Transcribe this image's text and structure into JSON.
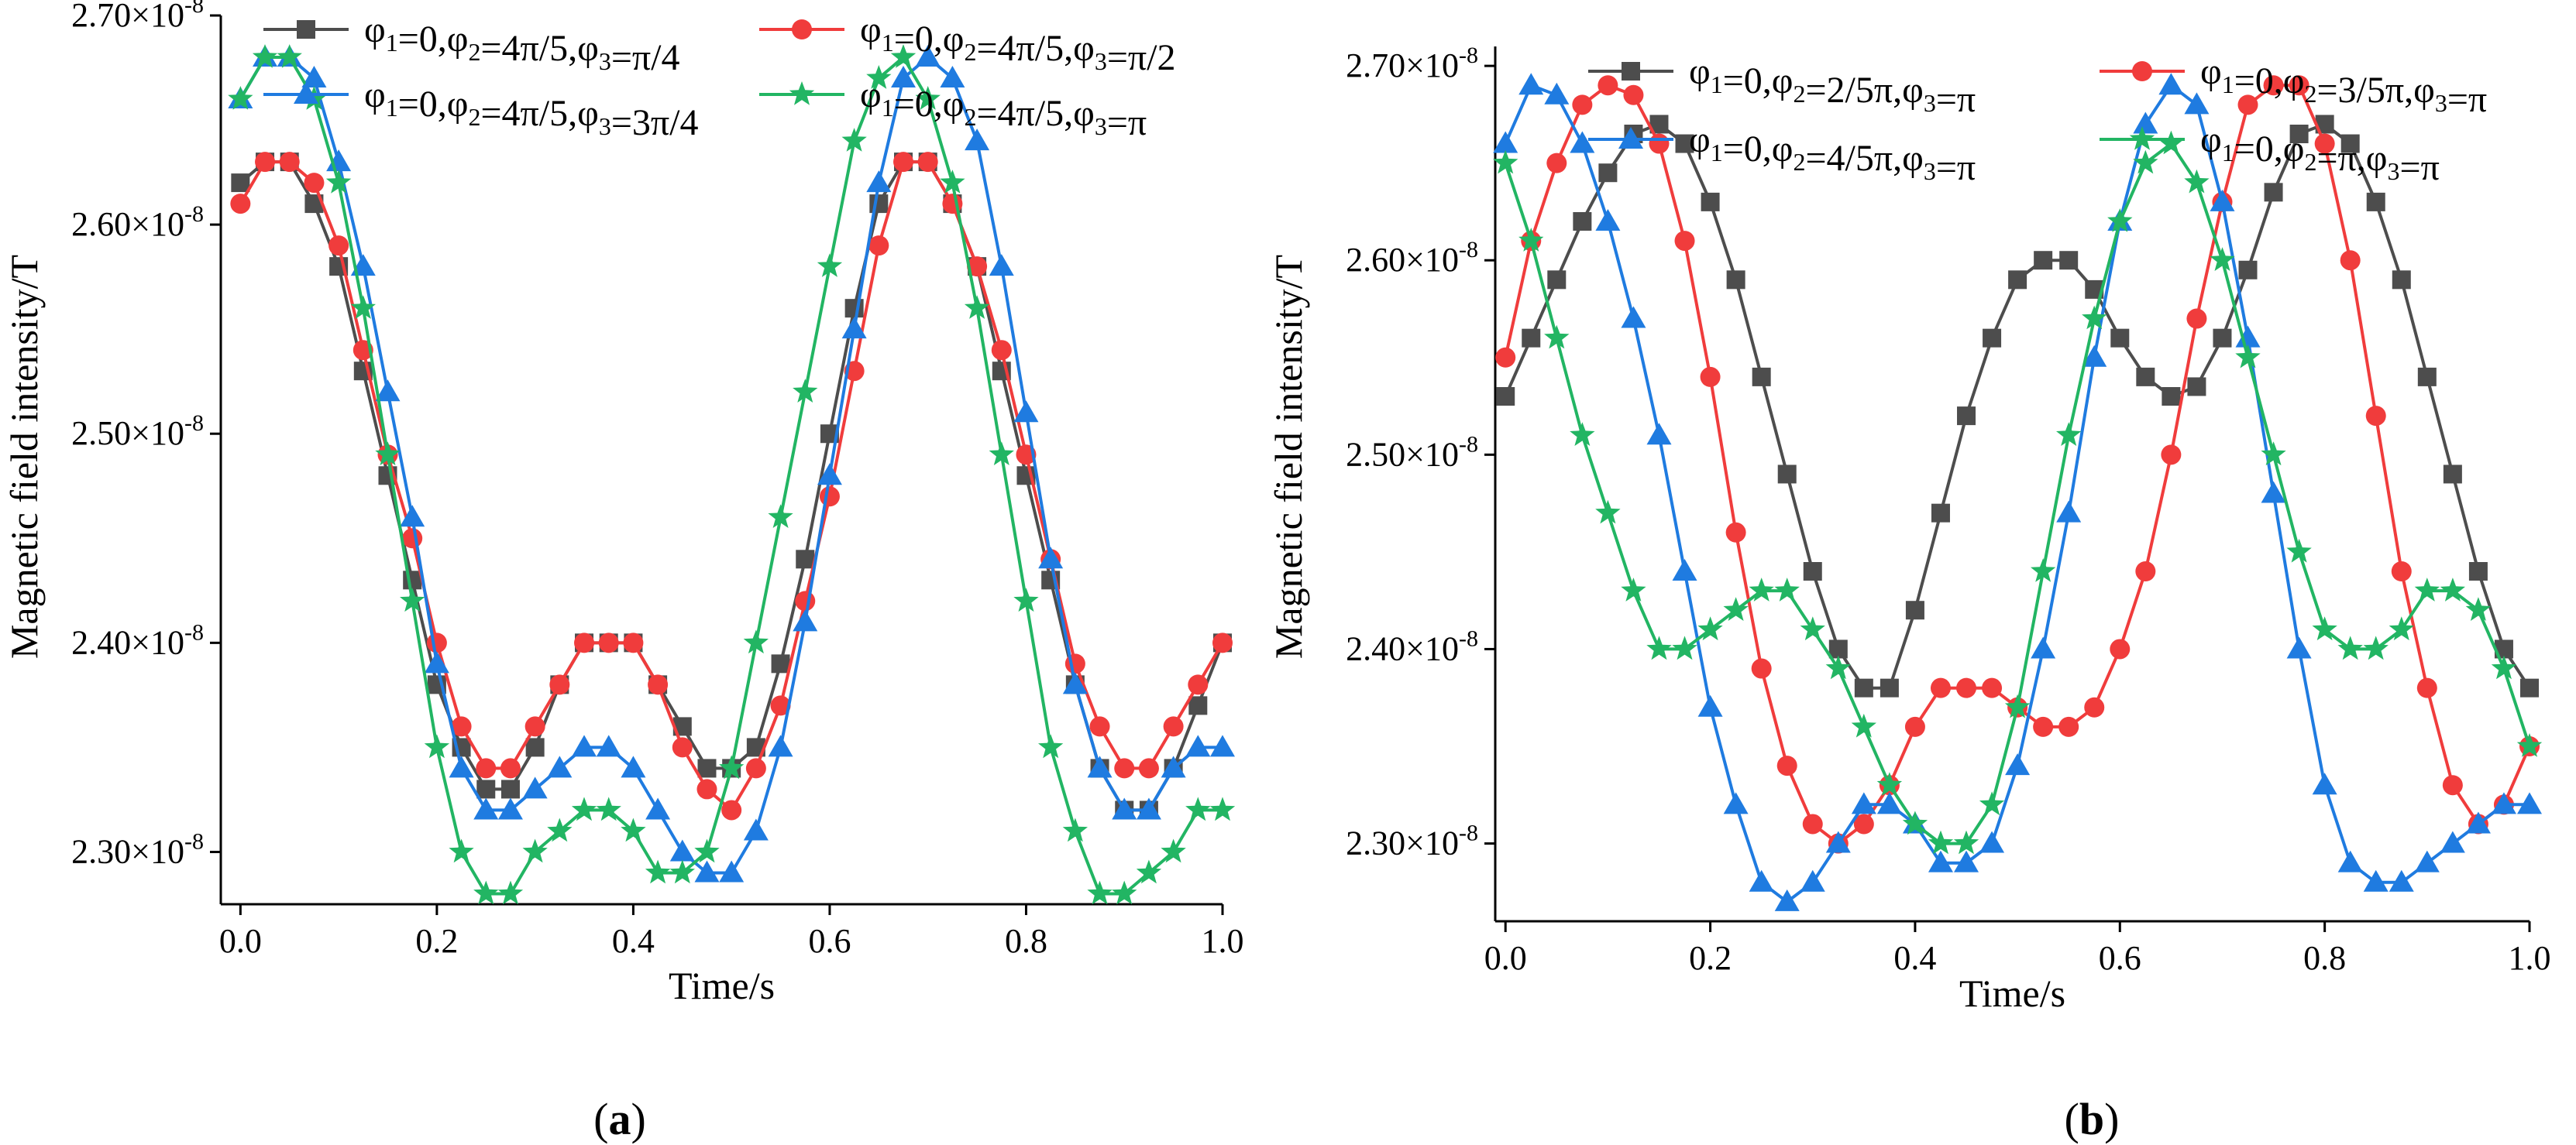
{
  "colors": {
    "axis": "#000000",
    "series": [
      "#4d4d4d",
      "#f03c3c",
      "#1f7be0",
      "#22b563"
    ]
  },
  "chart_data": [
    {
      "type": "line",
      "panel_label": "(a)",
      "xlabel": "Time/s",
      "ylabel": "Magnetic field intensity/T",
      "xlim": [
        -0.02,
        1.0
      ],
      "ylim": [
        2.275e-08,
        2.7e-08
      ],
      "x_ticks": [
        "0.0",
        "0.2",
        "0.4",
        "0.6",
        "0.8",
        "1.0"
      ],
      "y_ticks": [
        {
          "mantissa": "2.30×10",
          "exp": "-8"
        },
        {
          "mantissa": "2.40×10",
          "exp": "-8"
        },
        {
          "mantissa": "2.50×10",
          "exp": "-8"
        },
        {
          "mantissa": "2.60×10",
          "exp": "-8"
        },
        {
          "mantissa": "2.70×10",
          "exp": "-8"
        }
      ],
      "legend_position": "top",
      "series": [
        {
          "name": "φ1=0,φ2=4π/5,φ3=π/4",
          "marker": "square",
          "x": [
            0.0,
            0.025,
            0.05,
            0.075,
            0.1,
            0.125,
            0.15,
            0.175,
            0.2,
            0.225,
            0.25,
            0.275,
            0.3,
            0.325,
            0.35,
            0.375,
            0.4,
            0.425,
            0.45,
            0.475,
            0.5,
            0.525,
            0.55,
            0.575,
            0.6,
            0.625,
            0.65,
            0.675,
            0.7,
            0.725,
            0.75,
            0.775,
            0.8,
            0.825,
            0.85,
            0.875,
            0.9,
            0.925,
            0.95,
            0.975,
            1.0
          ],
          "y": [
            2.62,
            2.63,
            2.63,
            2.61,
            2.58,
            2.53,
            2.48,
            2.43,
            2.38,
            2.35,
            2.33,
            2.33,
            2.35,
            2.38,
            2.4,
            2.4,
            2.4,
            2.38,
            2.36,
            2.34,
            2.34,
            2.35,
            2.39,
            2.44,
            2.5,
            2.56,
            2.61,
            2.63,
            2.63,
            2.61,
            2.58,
            2.53,
            2.48,
            2.43,
            2.38,
            2.34,
            2.32,
            2.32,
            2.34,
            2.37,
            2.4
          ]
        },
        {
          "name": "φ1=0,φ2=4π/5,φ3=π/2",
          "marker": "circle",
          "x": [
            0.0,
            0.025,
            0.05,
            0.075,
            0.1,
            0.125,
            0.15,
            0.175,
            0.2,
            0.225,
            0.25,
            0.275,
            0.3,
            0.325,
            0.35,
            0.375,
            0.4,
            0.425,
            0.45,
            0.475,
            0.5,
            0.525,
            0.55,
            0.575,
            0.6,
            0.625,
            0.65,
            0.675,
            0.7,
            0.725,
            0.75,
            0.775,
            0.8,
            0.825,
            0.85,
            0.875,
            0.9,
            0.925,
            0.95,
            0.975,
            1.0
          ],
          "y": [
            2.61,
            2.63,
            2.63,
            2.62,
            2.59,
            2.54,
            2.49,
            2.45,
            2.4,
            2.36,
            2.34,
            2.34,
            2.36,
            2.38,
            2.4,
            2.4,
            2.4,
            2.38,
            2.35,
            2.33,
            2.32,
            2.34,
            2.37,
            2.42,
            2.47,
            2.53,
            2.59,
            2.63,
            2.63,
            2.61,
            2.58,
            2.54,
            2.49,
            2.44,
            2.39,
            2.36,
            2.34,
            2.34,
            2.36,
            2.38,
            2.4
          ]
        },
        {
          "name": "φ1=0,φ2=4π/5,φ3=3π/4",
          "marker": "triangle",
          "x": [
            0.0,
            0.025,
            0.05,
            0.075,
            0.1,
            0.125,
            0.15,
            0.175,
            0.2,
            0.225,
            0.25,
            0.275,
            0.3,
            0.325,
            0.35,
            0.375,
            0.4,
            0.425,
            0.45,
            0.475,
            0.5,
            0.525,
            0.55,
            0.575,
            0.6,
            0.625,
            0.65,
            0.675,
            0.7,
            0.725,
            0.75,
            0.775,
            0.8,
            0.825,
            0.85,
            0.875,
            0.9,
            0.925,
            0.95,
            0.975,
            1.0
          ],
          "y": [
            2.66,
            2.68,
            2.68,
            2.67,
            2.63,
            2.58,
            2.52,
            2.46,
            2.39,
            2.34,
            2.32,
            2.32,
            2.33,
            2.34,
            2.35,
            2.35,
            2.34,
            2.32,
            2.3,
            2.29,
            2.29,
            2.31,
            2.35,
            2.41,
            2.48,
            2.55,
            2.62,
            2.67,
            2.68,
            2.67,
            2.64,
            2.58,
            2.51,
            2.44,
            2.38,
            2.34,
            2.32,
            2.32,
            2.34,
            2.35,
            2.35
          ]
        },
        {
          "name": "φ1=0,φ2=4π/5,φ3=π",
          "marker": "star",
          "x": [
            0.0,
            0.025,
            0.05,
            0.075,
            0.1,
            0.125,
            0.15,
            0.175,
            0.2,
            0.225,
            0.25,
            0.275,
            0.3,
            0.325,
            0.35,
            0.375,
            0.4,
            0.425,
            0.45,
            0.475,
            0.5,
            0.525,
            0.55,
            0.575,
            0.6,
            0.625,
            0.65,
            0.675,
            0.7,
            0.725,
            0.75,
            0.775,
            0.8,
            0.825,
            0.85,
            0.875,
            0.9,
            0.925,
            0.95,
            0.975,
            1.0
          ],
          "y": [
            2.66,
            2.68,
            2.68,
            2.66,
            2.62,
            2.56,
            2.49,
            2.42,
            2.35,
            2.3,
            2.28,
            2.28,
            2.3,
            2.31,
            2.32,
            2.32,
            2.31,
            2.29,
            2.29,
            2.3,
            2.34,
            2.4,
            2.46,
            2.52,
            2.58,
            2.64,
            2.67,
            2.68,
            2.66,
            2.62,
            2.56,
            2.49,
            2.42,
            2.35,
            2.31,
            2.28,
            2.28,
            2.29,
            2.3,
            2.32,
            2.32
          ]
        }
      ]
    },
    {
      "type": "line",
      "panel_label": "(b)",
      "xlabel": "Time/s",
      "ylabel": "Magnetic field intensity/T",
      "xlim": [
        -0.01,
        1.0
      ],
      "ylim": [
        2.26e-08,
        2.71e-08
      ],
      "x_ticks": [
        "0.0",
        "0.2",
        "0.4",
        "0.6",
        "0.8",
        "1.0"
      ],
      "y_ticks": [
        {
          "mantissa": "2.30×10",
          "exp": "-8"
        },
        {
          "mantissa": "2.40×10",
          "exp": "-8"
        },
        {
          "mantissa": "2.50×10",
          "exp": "-8"
        },
        {
          "mantissa": "2.60×10",
          "exp": "-8"
        },
        {
          "mantissa": "2.70×10",
          "exp": "-8"
        }
      ],
      "legend_position": "top",
      "series": [
        {
          "name": "φ1=0,φ2=2/5π,φ3=π",
          "marker": "square",
          "x": [
            0.0,
            0.025,
            0.05,
            0.075,
            0.1,
            0.125,
            0.15,
            0.175,
            0.2,
            0.225,
            0.25,
            0.275,
            0.3,
            0.325,
            0.35,
            0.375,
            0.4,
            0.425,
            0.45,
            0.475,
            0.5,
            0.525,
            0.55,
            0.575,
            0.6,
            0.625,
            0.65,
            0.675,
            0.7,
            0.725,
            0.75,
            0.775,
            0.8,
            0.825,
            0.85,
            0.875,
            0.9,
            0.925,
            0.95,
            0.975,
            1.0
          ],
          "y": [
            2.53,
            2.56,
            2.59,
            2.62,
            2.645,
            2.665,
            2.67,
            2.66,
            2.63,
            2.59,
            2.54,
            2.49,
            2.44,
            2.4,
            2.38,
            2.38,
            2.42,
            2.47,
            2.52,
            2.56,
            2.59,
            2.6,
            2.6,
            2.585,
            2.56,
            2.54,
            2.53,
            2.535,
            2.56,
            2.595,
            2.635,
            2.665,
            2.67,
            2.66,
            2.63,
            2.59,
            2.54,
            2.49,
            2.44,
            2.4,
            2.38
          ]
        },
        {
          "name": "φ1=0,φ2=3/5π,φ3=π",
          "marker": "circle",
          "x": [
            0.0,
            0.025,
            0.05,
            0.075,
            0.1,
            0.125,
            0.15,
            0.175,
            0.2,
            0.225,
            0.25,
            0.275,
            0.3,
            0.325,
            0.35,
            0.375,
            0.4,
            0.425,
            0.45,
            0.475,
            0.5,
            0.525,
            0.55,
            0.575,
            0.6,
            0.625,
            0.65,
            0.675,
            0.7,
            0.725,
            0.75,
            0.775,
            0.8,
            0.825,
            0.85,
            0.875,
            0.9,
            0.925,
            0.95,
            0.975,
            1.0
          ],
          "y": [
            2.55,
            2.61,
            2.65,
            2.68,
            2.69,
            2.685,
            2.66,
            2.61,
            2.54,
            2.46,
            2.39,
            2.34,
            2.31,
            2.3,
            2.31,
            2.33,
            2.36,
            2.38,
            2.38,
            2.38,
            2.37,
            2.36,
            2.36,
            2.37,
            2.4,
            2.44,
            2.5,
            2.57,
            2.63,
            2.68,
            2.69,
            2.69,
            2.66,
            2.6,
            2.52,
            2.44,
            2.38,
            2.33,
            2.31,
            2.32,
            2.35
          ]
        },
        {
          "name": "φ1=0,φ2=4/5π,φ3=π",
          "marker": "triangle",
          "x": [
            0.0,
            0.025,
            0.05,
            0.075,
            0.1,
            0.125,
            0.15,
            0.175,
            0.2,
            0.225,
            0.25,
            0.275,
            0.3,
            0.325,
            0.35,
            0.375,
            0.4,
            0.425,
            0.45,
            0.475,
            0.5,
            0.525,
            0.55,
            0.575,
            0.6,
            0.625,
            0.65,
            0.675,
            0.7,
            0.725,
            0.75,
            0.775,
            0.8,
            0.825,
            0.85,
            0.875,
            0.9,
            0.925,
            0.95,
            0.975,
            1.0
          ],
          "y": [
            2.66,
            2.69,
            2.685,
            2.66,
            2.62,
            2.57,
            2.51,
            2.44,
            2.37,
            2.32,
            2.28,
            2.27,
            2.28,
            2.3,
            2.32,
            2.32,
            2.31,
            2.29,
            2.29,
            2.3,
            2.34,
            2.4,
            2.47,
            2.55,
            2.62,
            2.67,
            2.69,
            2.68,
            2.63,
            2.56,
            2.48,
            2.4,
            2.33,
            2.29,
            2.28,
            2.28,
            2.29,
            2.3,
            2.31,
            2.32,
            2.32
          ]
        },
        {
          "name": "φ1=0,φ2=π,φ3=π",
          "marker": "star",
          "x": [
            0.0,
            0.025,
            0.05,
            0.075,
            0.1,
            0.125,
            0.15,
            0.175,
            0.2,
            0.225,
            0.25,
            0.275,
            0.3,
            0.325,
            0.35,
            0.375,
            0.4,
            0.425,
            0.45,
            0.475,
            0.5,
            0.525,
            0.55,
            0.575,
            0.6,
            0.625,
            0.65,
            0.675,
            0.7,
            0.725,
            0.75,
            0.775,
            0.8,
            0.825,
            0.85,
            0.875,
            0.9,
            0.925,
            0.95,
            0.975,
            1.0
          ],
          "y": [
            2.65,
            2.61,
            2.56,
            2.51,
            2.47,
            2.43,
            2.4,
            2.4,
            2.41,
            2.42,
            2.43,
            2.43,
            2.41,
            2.39,
            2.36,
            2.33,
            2.31,
            2.3,
            2.3,
            2.32,
            2.37,
            2.44,
            2.51,
            2.57,
            2.62,
            2.65,
            2.66,
            2.64,
            2.6,
            2.55,
            2.5,
            2.45,
            2.41,
            2.4,
            2.4,
            2.41,
            2.43,
            2.43,
            2.42,
            2.39,
            2.35
          ]
        }
      ]
    }
  ]
}
